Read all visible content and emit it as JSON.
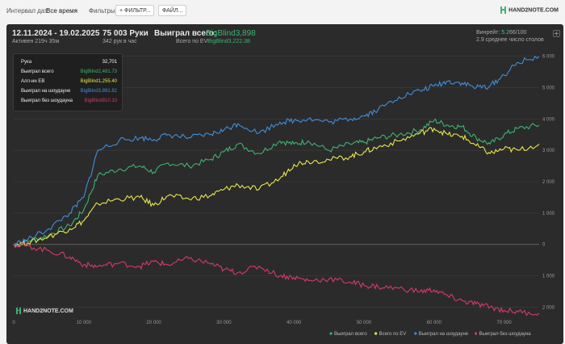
{
  "toolbar": {
    "interval_label": "Интервал дат:",
    "interval_value": "Все время",
    "filters_label": "Фильтры:",
    "filter_button": "+ ФИЛЬТР...",
    "file_button": "ФАЙЛ...",
    "logo": "HAND2NOTE.COM"
  },
  "header": {
    "date_range": "12.11.2024 - 19.02.2025",
    "active": "Активен 219ч 35м",
    "hands": "75 003 Руки",
    "hands_rate": "342 рук в час",
    "won_label": "Выиграл всего:",
    "won_value": "BigBlind3,898",
    "ev_label": "Всего по EV:",
    "ev_value": "BigBlind3,222.38",
    "winrate_label": "Винрейт:",
    "winrate_value": "5.2",
    "winrate_suffix": "66/100",
    "tables": "2.9 среднее число столов"
  },
  "tooltip": {
    "rows": [
      {
        "label": "Рука",
        "value": "32,701",
        "color": "#ffffff"
      },
      {
        "label": "Выиграл всего",
        "value": "BigBlind2,481.73",
        "color": "#3cb371"
      },
      {
        "label": "Алл-ин EB",
        "value": "BigBlind1,255.40",
        "color": "#e8e84a"
      },
      {
        "label": "Выиграл на шоудауне",
        "value": "BigBlind3,891.82",
        "color": "#3f8fdd"
      },
      {
        "label": "Выиграл без шоудауна",
        "value": "BigBlind810.10",
        "color": "#d8386a"
      }
    ]
  },
  "watermark": "HAND2NOTE.COM",
  "colors": {
    "total": "#3cb371",
    "ev": "#e8e84a",
    "showdown": "#3f8fdd",
    "nonshowdown": "#d8386a",
    "panel": "#2b2b2b"
  },
  "icons": {
    "corner": "expand-icon",
    "chevron": "chevron-down-icon",
    "logo": "hand2note-logo-icon"
  },
  "chart_data": {
    "type": "line",
    "title": "",
    "xlabel": "",
    "ylabel": "",
    "xlim": [
      0,
      75000
    ],
    "ylim": [
      -2300,
      6300
    ],
    "x_ticks": [
      0,
      10000,
      20000,
      30000,
      40000,
      50000,
      60000,
      70000
    ],
    "x_tick_labels": [
      "0",
      "10 000",
      "20 000",
      "30 000",
      "40 000",
      "50 000",
      "60 000",
      "70 000"
    ],
    "y_ticks": [
      -2000,
      -1000,
      0,
      1000,
      2000,
      3000,
      4000,
      5000,
      6000
    ],
    "y_tick_labels": [
      "2 000",
      "1 000",
      "0",
      "1 000",
      "2 000",
      "3 000",
      "4 000",
      "5 000",
      "6 000"
    ],
    "grid": true,
    "legend_position": "bottom-right",
    "series": [
      {
        "name": "Выиграл всего",
        "color": "#3cb371",
        "x": [
          0,
          2000,
          5000,
          8000,
          10000,
          12000,
          15000,
          18000,
          20000,
          22000,
          25000,
          28000,
          30000,
          32000,
          35000,
          38000,
          40000,
          42000,
          45000,
          48000,
          50000,
          52000,
          55000,
          58000,
          60000,
          62000,
          64000,
          66000,
          68000,
          70000,
          72000,
          75000
        ],
        "values": [
          0,
          100,
          300,
          600,
          1100,
          2200,
          2400,
          2500,
          2300,
          2600,
          2500,
          2700,
          2950,
          3200,
          2900,
          3300,
          3200,
          3300,
          3000,
          3200,
          3250,
          3400,
          3500,
          3650,
          3950,
          3800,
          3750,
          3400,
          3200,
          3500,
          3700,
          3800
        ]
      },
      {
        "name": "Всего по EV",
        "color": "#e8e84a",
        "x": [
          0,
          2000,
          5000,
          8000,
          10000,
          12000,
          15000,
          18000,
          20000,
          22000,
          25000,
          28000,
          30000,
          32000,
          35000,
          38000,
          40000,
          42000,
          45000,
          48000,
          50000,
          52000,
          55000,
          58000,
          60000,
          62000,
          64000,
          66000,
          68000,
          70000,
          72000,
          75000
        ],
        "values": [
          0,
          50,
          250,
          500,
          750,
          1300,
          1450,
          1500,
          1250,
          1550,
          1450,
          1550,
          1750,
          1900,
          1750,
          2100,
          2550,
          2650,
          2700,
          2800,
          2950,
          3100,
          3300,
          3550,
          3700,
          3500,
          3450,
          3150,
          2900,
          3050,
          3000,
          3200
        ]
      },
      {
        "name": "Выиграл на шоудауне",
        "color": "#3f8fdd",
        "x": [
          0,
          2000,
          5000,
          8000,
          10000,
          12000,
          15000,
          18000,
          20000,
          22000,
          25000,
          28000,
          30000,
          32000,
          35000,
          38000,
          40000,
          42000,
          45000,
          48000,
          50000,
          52000,
          55000,
          58000,
          60000,
          62000,
          64000,
          66000,
          68000,
          70000,
          72000,
          75000
        ],
        "values": [
          0,
          150,
          500,
          1000,
          1500,
          3000,
          3300,
          3400,
          3350,
          3500,
          3400,
          3500,
          3650,
          3850,
          3550,
          3900,
          3950,
          4000,
          3900,
          4000,
          4100,
          4300,
          4700,
          4900,
          5050,
          5200,
          5150,
          5000,
          5050,
          5400,
          5800,
          6000
        ]
      },
      {
        "name": "Выиграл без шоудауна",
        "color": "#d8386a",
        "x": [
          0,
          2000,
          5000,
          8000,
          10000,
          12000,
          15000,
          18000,
          20000,
          22000,
          25000,
          28000,
          30000,
          32000,
          35000,
          38000,
          40000,
          42000,
          45000,
          48000,
          50000,
          52000,
          55000,
          58000,
          60000,
          62000,
          64000,
          66000,
          68000,
          70000,
          72000,
          75000
        ],
        "values": [
          0,
          -50,
          -200,
          -400,
          -650,
          -700,
          -600,
          -700,
          -550,
          -650,
          -450,
          -600,
          -800,
          -900,
          -700,
          -1000,
          -1050,
          -1150,
          -1100,
          -1200,
          -1300,
          -1350,
          -1400,
          -1500,
          -1450,
          -1650,
          -1800,
          -1900,
          -2000,
          -2100,
          -2150,
          -2200
        ]
      }
    ]
  }
}
